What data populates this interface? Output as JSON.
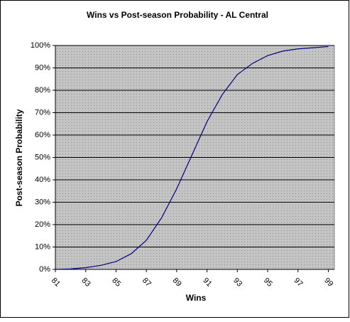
{
  "chart_data": {
    "type": "line",
    "title": "Wins vs Post-season Probability - AL Central",
    "x_label": "Wins",
    "y_label": "Post-season Probability",
    "x": [
      81,
      82,
      83,
      84,
      85,
      86,
      87,
      88,
      89,
      90,
      91,
      92,
      93,
      94,
      95,
      96,
      97,
      98,
      99
    ],
    "values": [
      0,
      0.2,
      0.8,
      1.8,
      3.5,
      7,
      13,
      23,
      36,
      51,
      66,
      78,
      87,
      92,
      95.5,
      97.5,
      98.5,
      99,
      99.5
    ],
    "color": "#000080",
    "xlim": [
      81,
      99.4
    ],
    "xticks": [
      81,
      83,
      85,
      87,
      89,
      91,
      93,
      95,
      97,
      99
    ],
    "ylim": [
      0,
      100
    ],
    "yticks": [
      {
        "value": 0,
        "label": "0%"
      },
      {
        "value": 10,
        "label": "10%"
      },
      {
        "value": 20,
        "label": "20%"
      },
      {
        "value": 30,
        "label": "30%"
      },
      {
        "value": 40,
        "label": "40%"
      },
      {
        "value": 50,
        "label": "50%"
      },
      {
        "value": 60,
        "label": "60%"
      },
      {
        "value": 70,
        "label": "70%"
      },
      {
        "value": 80,
        "label": "80%"
      },
      {
        "value": 90,
        "label": "90%"
      },
      {
        "value": 100,
        "label": "100%"
      }
    ],
    "grid": true
  }
}
